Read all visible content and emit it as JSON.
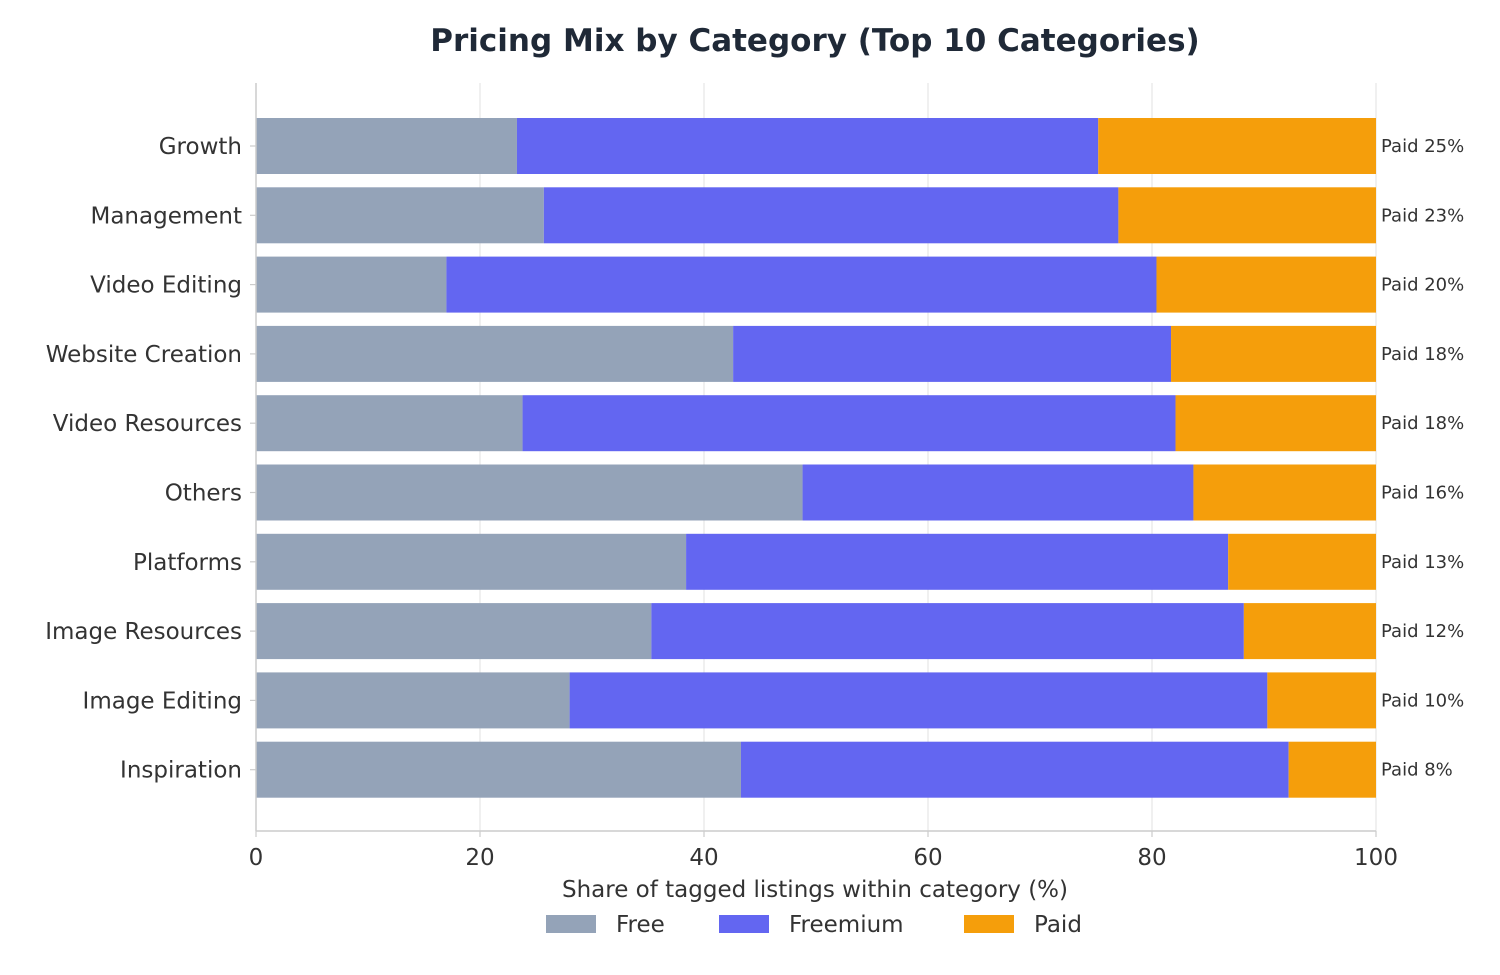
{
  "chart_data": {
    "type": "bar",
    "orientation": "horizontal",
    "stacked": true,
    "title": "Pricing Mix by Category (Top 10 Categories)",
    "xlabel": "Share of tagged listings within category (%)",
    "ylabel": "",
    "xlim": [
      0,
      100
    ],
    "xticks": [
      0,
      20,
      40,
      60,
      80,
      100
    ],
    "grid": "vertical",
    "legend_position": "bottom-center",
    "categories": [
      "Growth",
      "Management",
      "Video Editing",
      "Website Creation",
      "Video Resources",
      "Others",
      "Platforms",
      "Image Resources",
      "Image Editing",
      "Inspiration"
    ],
    "series": [
      {
        "name": "Free",
        "color": "#94a3b8",
        "values": [
          23.3,
          25.7,
          17.0,
          42.6,
          23.8,
          48.8,
          38.4,
          35.3,
          28.0,
          43.3
        ]
      },
      {
        "name": "Freemium",
        "color": "#6366f1",
        "values": [
          51.9,
          51.3,
          63.4,
          39.1,
          58.3,
          34.9,
          48.4,
          52.9,
          62.3,
          48.9
        ]
      },
      {
        "name": "Paid",
        "color": "#f59e0b",
        "values": [
          24.8,
          23.0,
          19.6,
          18.3,
          17.9,
          16.3,
          13.2,
          11.8,
          9.7,
          7.8
        ]
      }
    ],
    "data_labels": [
      "Paid 25%",
      "Paid 23%",
      "Paid 20%",
      "Paid 18%",
      "Paid 18%",
      "Paid 16%",
      "Paid 13%",
      "Paid 12%",
      "Paid 10%",
      "Paid 8%"
    ]
  }
}
